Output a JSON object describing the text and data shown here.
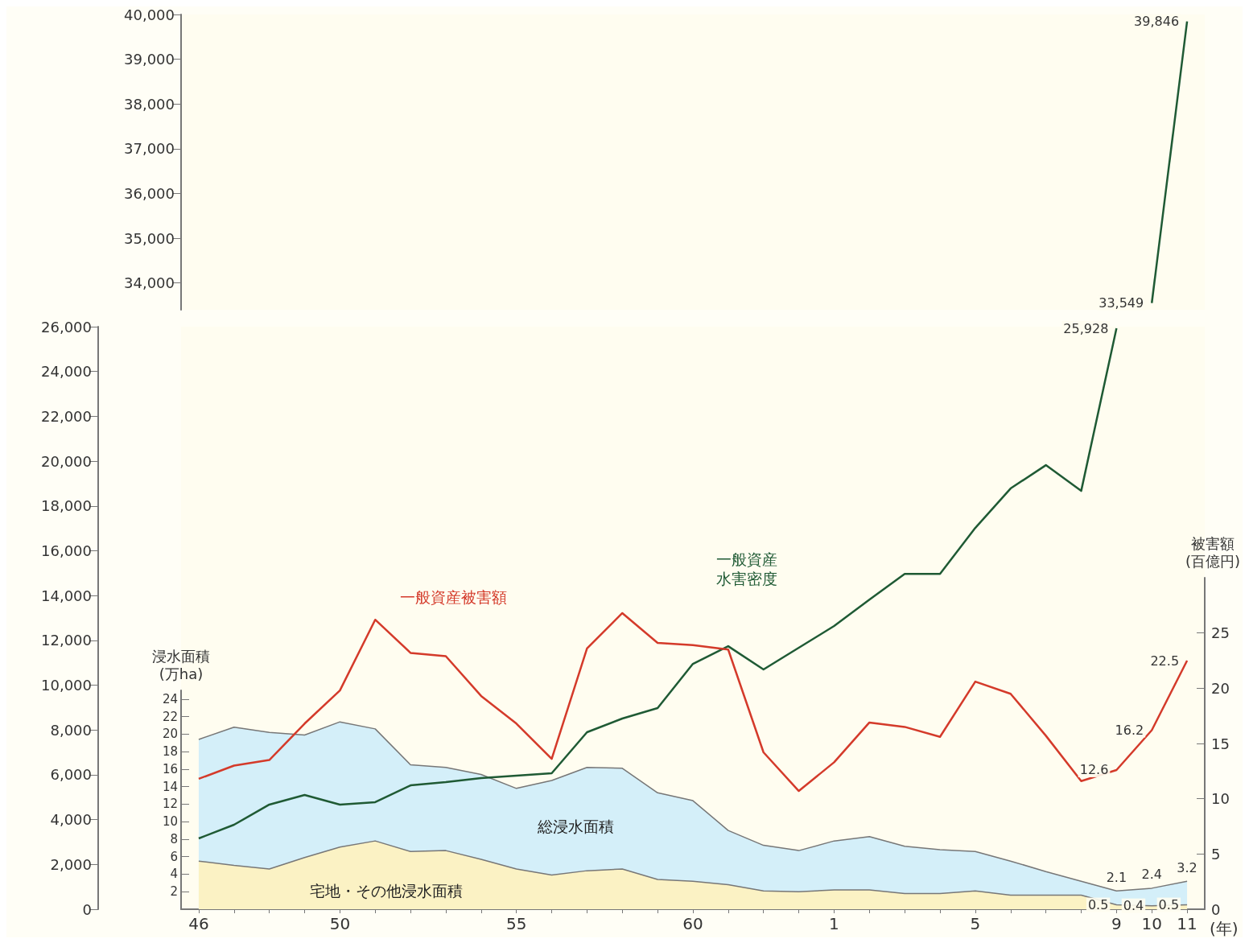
{
  "chart_data": [
    {
      "type": "line",
      "categories": [
        "46",
        null,
        null,
        null,
        "50",
        null,
        null,
        null,
        null,
        "55",
        null,
        null,
        null,
        null,
        "60",
        null,
        null,
        null,
        "1",
        null,
        null,
        null,
        "5",
        null,
        null,
        null,
        "9",
        "10",
        "11"
      ],
      "series": [
        {
          "color": "#1f5a34",
          "values": [
            null,
            null,
            null,
            null,
            null,
            null,
            null,
            null,
            null,
            null,
            null,
            null,
            null,
            null,
            null,
            null,
            null,
            null,
            null,
            null,
            null,
            null,
            null,
            null,
            null,
            null,
            null,
            33549,
            39846
          ],
          "value_labels": [
            null,
            null,
            null,
            null,
            null,
            null,
            null,
            null,
            null,
            null,
            null,
            null,
            null,
            null,
            null,
            null,
            null,
            null,
            null,
            null,
            null,
            null,
            null,
            null,
            null,
            null,
            null,
            "33,549",
            "39,846"
          ]
        }
      ],
      "ylim": [
        33400,
        40000
      ],
      "yticks": [
        {
          "value": 34000,
          "label": "34,000"
        },
        {
          "value": 35000,
          "label": "35,000"
        },
        {
          "value": 36000,
          "label": "36,000"
        },
        {
          "value": 37000,
          "label": "37,000"
        },
        {
          "value": 38000,
          "label": "38,000"
        },
        {
          "value": 39000,
          "label": "39,000"
        },
        {
          "value": 40000,
          "label": "40,000"
        }
      ],
      "tick_labels": "y",
      "marker": "none"
    },
    {
      "type": "line",
      "categories": [
        "46",
        null,
        null,
        null,
        "50",
        null,
        null,
        null,
        null,
        "55",
        null,
        null,
        null,
        null,
        "60",
        null,
        null,
        null,
        "1",
        null,
        null,
        null,
        "5",
        null,
        null,
        null,
        "9",
        "10",
        "11"
      ],
      "xlabel": "(年)",
      "series": [
        {
          "type": "area",
          "axis": "y3",
          "name": "総浸水面積",
          "color": "#d4eff9",
          "values": [
            19.4,
            20.8,
            20.2,
            19.9,
            21.4,
            20.6,
            16.5,
            16.2,
            15.4,
            13.8,
            14.7,
            16.2,
            16.1,
            13.3,
            12.4,
            9.0,
            7.3,
            6.7,
            7.8,
            8.3,
            7.2,
            6.8,
            6.6,
            5.5,
            4.3,
            3.2,
            2.1,
            2.4,
            3.2
          ],
          "value_labels": [
            null,
            null,
            null,
            null,
            null,
            null,
            null,
            null,
            null,
            null,
            null,
            null,
            null,
            null,
            null,
            null,
            null,
            null,
            null,
            null,
            null,
            null,
            null,
            null,
            null,
            null,
            "2.1",
            "2.4",
            "3.2"
          ]
        },
        {
          "type": "area",
          "axis": "y3",
          "name": "宅地・その他浸水面積",
          "color": "#fbf2c4",
          "values": [
            5.5,
            5.0,
            4.6,
            5.9,
            7.1,
            7.8,
            6.6,
            6.7,
            5.7,
            4.6,
            3.9,
            4.4,
            4.6,
            3.4,
            3.2,
            2.8,
            2.1,
            2.0,
            2.2,
            2.2,
            1.8,
            1.8,
            2.1,
            1.6,
            1.6,
            1.6,
            0.5,
            0.4,
            0.5
          ],
          "value_labels": [
            null,
            null,
            null,
            null,
            null,
            null,
            null,
            null,
            null,
            null,
            null,
            null,
            null,
            null,
            null,
            null,
            null,
            null,
            null,
            null,
            null,
            null,
            null,
            null,
            null,
            null,
            "0.5",
            "0.4",
            "0.5"
          ]
        },
        {
          "name": "一般資産水害密度",
          "color": "#1f5a34",
          "values": [
            3160,
            3770,
            4670,
            5100,
            4670,
            4780,
            5530,
            5670,
            5850,
            5960,
            6070,
            7900,
            8510,
            8980,
            10950,
            11740,
            10700,
            11670,
            12640,
            13820,
            14970,
            14970,
            17020,
            18780,
            19820,
            18670,
            25928,
            null,
            null
          ],
          "value_labels": [
            null,
            null,
            null,
            null,
            null,
            null,
            null,
            null,
            null,
            null,
            null,
            null,
            null,
            null,
            null,
            null,
            null,
            null,
            null,
            null,
            null,
            null,
            null,
            null,
            null,
            null,
            "25,928",
            null,
            null
          ]
        },
        {
          "axis": "y2",
          "name": "一般資産被害額",
          "color": "#d43a2a",
          "values": [
            11.8,
            13.0,
            13.5,
            16.8,
            19.8,
            26.2,
            23.2,
            22.9,
            19.3,
            16.8,
            13.6,
            23.6,
            26.8,
            24.1,
            23.9,
            23.5,
            14.2,
            10.7,
            13.3,
            16.9,
            16.5,
            15.6,
            20.6,
            19.5,
            15.7,
            11.6,
            12.6,
            16.2,
            22.5
          ],
          "value_labels": [
            null,
            null,
            null,
            null,
            null,
            null,
            null,
            null,
            null,
            null,
            null,
            null,
            null,
            null,
            null,
            null,
            null,
            null,
            null,
            null,
            null,
            null,
            null,
            null,
            null,
            null,
            "12.6",
            "16.2",
            "22.5"
          ]
        }
      ],
      "ylim": [
        0,
        26000
      ],
      "yticks": [
        0,
        {
          "value": 2000,
          "label": "2,000"
        },
        {
          "value": 4000,
          "label": "4,000"
        },
        {
          "value": 6000,
          "label": "6,000"
        },
        {
          "value": 8000,
          "label": "8,000"
        },
        {
          "value": 10000,
          "label": "10,000"
        },
        {
          "value": 12000,
          "label": "12,000"
        },
        {
          "value": 14000,
          "label": "14,000"
        },
        {
          "value": 16000,
          "label": "16,000"
        },
        {
          "value": 18000,
          "label": "18,000"
        },
        {
          "value": 20000,
          "label": "20,000"
        },
        {
          "value": 22000,
          "label": "22,000"
        },
        {
          "value": 24000,
          "label": "24,000"
        },
        {
          "value": 26000,
          "label": "26,000"
        }
      ],
      "y2label": "被害額\n(百億円)",
      "y2lim": [
        0,
        30
      ],
      "y2ticks": [
        0,
        5,
        10,
        15,
        20,
        25
      ],
      "y3label": "浸水面積\n(万ha)",
      "y3lim": [
        0,
        25
      ],
      "y3ticks": [
        2,
        4,
        6,
        8,
        10,
        12,
        14,
        16,
        18,
        20,
        22,
        24
      ],
      "marker": "none"
    }
  ]
}
